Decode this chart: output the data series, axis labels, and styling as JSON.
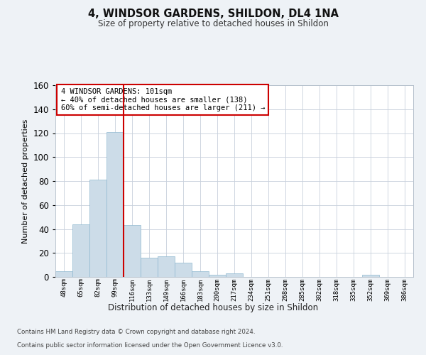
{
  "title1": "4, WINDSOR GARDENS, SHILDON, DL4 1NA",
  "title2": "Size of property relative to detached houses in Shildon",
  "xlabel": "Distribution of detached houses by size in Shildon",
  "ylabel": "Number of detached properties",
  "categories": [
    "48sqm",
    "65sqm",
    "82sqm",
    "99sqm",
    "116sqm",
    "133sqm",
    "149sqm",
    "166sqm",
    "183sqm",
    "200sqm",
    "217sqm",
    "234sqm",
    "251sqm",
    "268sqm",
    "285sqm",
    "302sqm",
    "318sqm",
    "335sqm",
    "352sqm",
    "369sqm",
    "386sqm"
  ],
  "values": [
    5,
    44,
    81,
    121,
    43,
    16,
    17,
    12,
    5,
    2,
    3,
    0,
    0,
    0,
    0,
    0,
    0,
    0,
    2,
    0,
    0
  ],
  "bar_color": "#ccdce8",
  "bar_edge_color": "#90b8d0",
  "ylim": [
    0,
    160
  ],
  "yticks": [
    0,
    20,
    40,
    60,
    80,
    100,
    120,
    140,
    160
  ],
  "vline_color": "#cc0000",
  "annotation_text": "4 WINDSOR GARDENS: 101sqm\n← 40% of detached houses are smaller (138)\n60% of semi-detached houses are larger (211) →",
  "annotation_box_color": "#ffffff",
  "annotation_border_color": "#cc0000",
  "footer1": "Contains HM Land Registry data © Crown copyright and database right 2024.",
  "footer2": "Contains public sector information licensed under the Open Government Licence v3.0.",
  "bg_color": "#eef2f6",
  "plot_bg_color": "#ffffff",
  "grid_color": "#c8d0dc"
}
